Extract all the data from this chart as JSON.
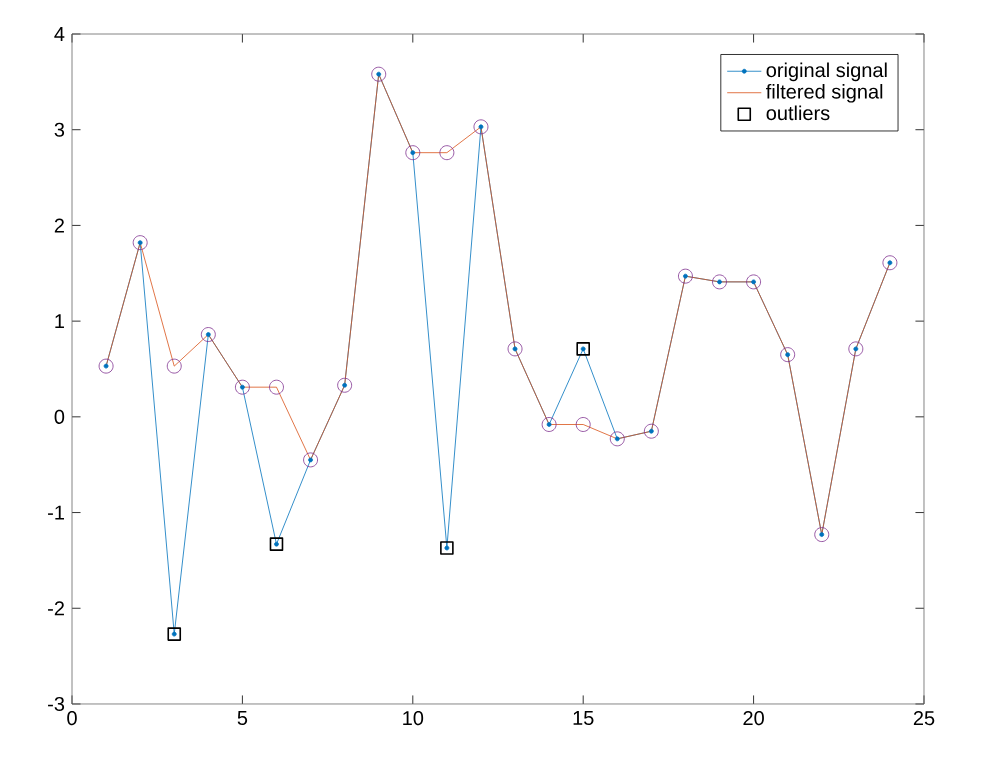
{
  "chart_data": {
    "type": "line",
    "xlim": [
      0,
      25
    ],
    "ylim": [
      -3,
      4
    ],
    "xticks": [
      0,
      5,
      10,
      15,
      20,
      25
    ],
    "yticks": [
      -3,
      -2,
      -1,
      0,
      1,
      2,
      3,
      4
    ],
    "grid": false,
    "legend": "top right",
    "x": [
      1,
      2,
      3,
      4,
      5,
      6,
      7,
      8,
      9,
      10,
      11,
      12,
      13,
      14,
      15,
      16,
      17,
      18,
      19,
      20,
      21,
      22,
      23,
      24
    ],
    "series": [
      {
        "name": "original signal",
        "color": "#0072bd",
        "marker": "circle",
        "values": [
          0.53,
          1.82,
          -2.27,
          0.86,
          0.31,
          -1.33,
          -0.45,
          0.33,
          3.58,
          2.76,
          -1.37,
          3.03,
          0.71,
          -0.08,
          0.71,
          -0.23,
          -0.15,
          1.47,
          1.41,
          1.41,
          0.65,
          -1.23,
          0.71,
          1.61
        ]
      },
      {
        "name": "filtered signal",
        "color": "#d95319",
        "marker": "none",
        "values": [
          0.53,
          1.82,
          0.53,
          0.86,
          0.31,
          0.31,
          -0.45,
          0.33,
          3.58,
          2.76,
          2.76,
          3.03,
          0.71,
          -0.08,
          -0.08,
          -0.23,
          -0.15,
          1.47,
          1.41,
          1.41,
          0.65,
          -1.23,
          0.71,
          1.61
        ]
      },
      {
        "name": "outliers",
        "type": "scatter",
        "color": "#000000",
        "marker": "square",
        "x": [
          3,
          6,
          11,
          15
        ],
        "values": [
          -2.27,
          -1.33,
          -1.37,
          0.71
        ]
      },
      {
        "type": "scatter",
        "color": "#7e2f8e",
        "marker": "circle",
        "values": [
          0.53,
          1.82,
          0.53,
          0.86,
          0.31,
          0.31,
          -0.45,
          0.33,
          3.58,
          2.76,
          2.76,
          3.03,
          0.71,
          -0.08,
          -0.08,
          -0.23,
          -0.15,
          1.47,
          1.41,
          1.41,
          0.65,
          -1.23,
          0.71,
          1.61
        ]
      }
    ]
  }
}
